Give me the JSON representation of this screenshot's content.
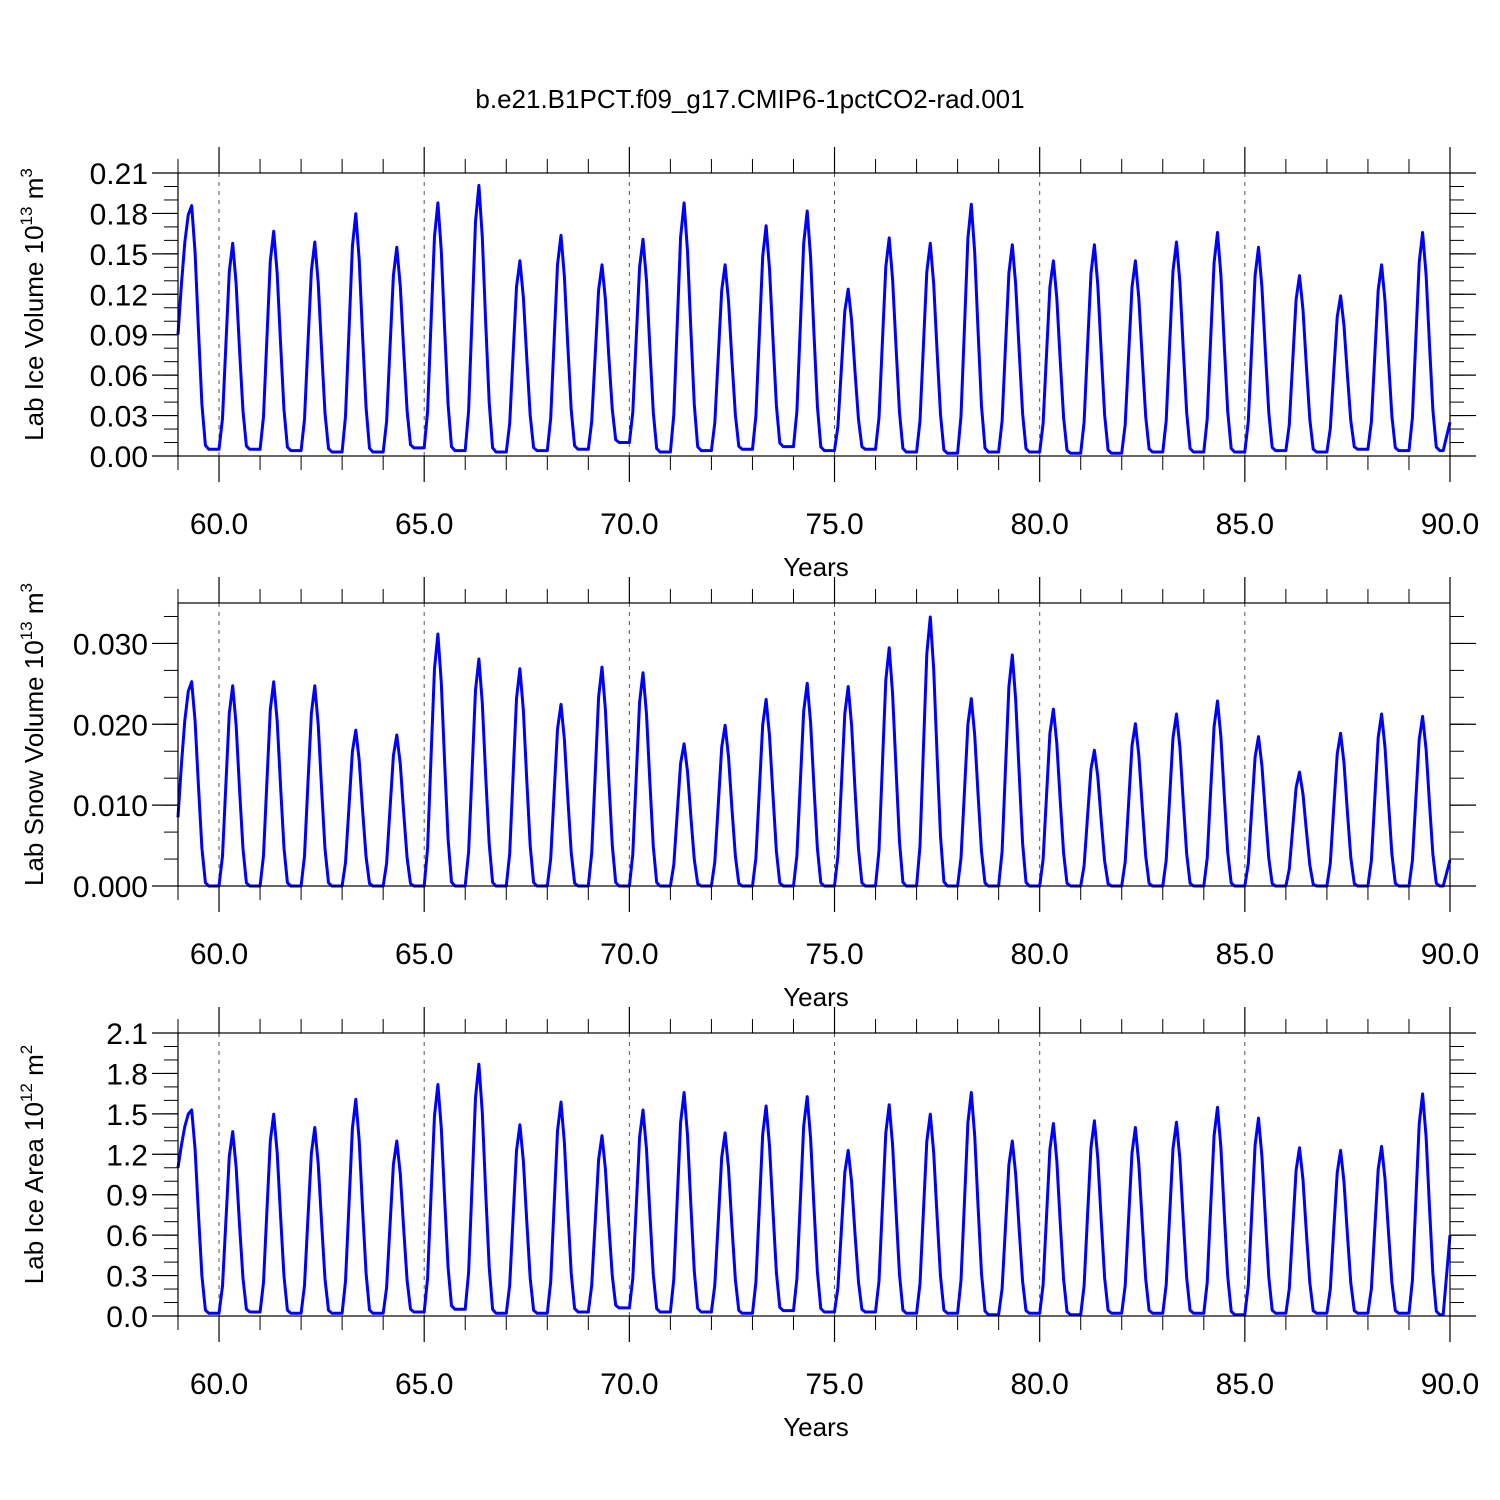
{
  "figure": {
    "title": "b.e21.B1PCT.f09_g17.CMIP6-1pctCO2-rad.001"
  },
  "style": {
    "line_color": "#0000ff",
    "axis_color": "#000000",
    "grid_color": "#555555"
  },
  "chart_data": [
    {
      "type": "line",
      "ylabel": "Lab Ice Volume 10",
      "ylabel_exp": "13",
      "ylabel_unit": " m",
      "ylabel_unit_exp": "3",
      "xlabel": "Years",
      "xlim": [
        59.0,
        90.0
      ],
      "ylim": [
        0.0,
        0.21
      ],
      "x_ticks": [
        60.0,
        65.0,
        70.0,
        75.0,
        80.0,
        85.0,
        90.0
      ],
      "x_tick_labels": [
        "60.0",
        "65.0",
        "70.0",
        "75.0",
        "80.0",
        "85.0",
        "90.0"
      ],
      "y_ticks": [
        0.0,
        0.03,
        0.06,
        0.09,
        0.12,
        0.15,
        0.18,
        0.21
      ],
      "y_tick_labels": [
        "0.00",
        "0.03",
        "0.06",
        "0.09",
        "0.12",
        "0.15",
        "0.18",
        "0.21"
      ],
      "grid": "dashed vertical at major x ticks",
      "peaks": [
        0.186,
        0.158,
        0.167,
        0.159,
        0.18,
        0.155,
        0.188,
        0.201,
        0.145,
        0.164,
        0.142,
        0.161,
        0.188,
        0.142,
        0.171,
        0.182,
        0.124,
        0.162,
        0.158,
        0.187,
        0.157,
        0.145,
        0.157,
        0.145,
        0.159,
        0.166,
        0.155,
        0.134,
        0.119,
        0.142,
        0.166
      ],
      "troughs": [
        0.005,
        0.005,
        0.004,
        0.003,
        0.003,
        0.006,
        0.004,
        0.003,
        0.004,
        0.005,
        0.01,
        0.003,
        0.004,
        0.005,
        0.007,
        0.004,
        0.005,
        0.003,
        0.002,
        0.003,
        0.003,
        0.002,
        0.002,
        0.003,
        0.003,
        0.003,
        0.004,
        0.003,
        0.005,
        0.004,
        0.004
      ],
      "start_value": 0.09,
      "end_value": 0.025
    },
    {
      "type": "line",
      "ylabel": "Lab Snow Volume 10",
      "ylabel_exp": "13",
      "ylabel_unit": " m",
      "ylabel_unit_exp": "3",
      "xlabel": "Years",
      "xlim": [
        59.0,
        90.0
      ],
      "ylim": [
        0.0,
        0.035
      ],
      "x_ticks": [
        60.0,
        65.0,
        70.0,
        75.0,
        80.0,
        85.0,
        90.0
      ],
      "x_tick_labels": [
        "60.0",
        "65.0",
        "70.0",
        "75.0",
        "80.0",
        "85.0",
        "90.0"
      ],
      "y_ticks": [
        0.0,
        0.01,
        0.02,
        0.03
      ],
      "y_tick_labels": [
        "0.000",
        "0.010",
        "0.020",
        "0.030"
      ],
      "grid": "dashed vertical at major x ticks",
      "peaks": [
        0.0253,
        0.0248,
        0.0253,
        0.0248,
        0.0193,
        0.0187,
        0.0312,
        0.0281,
        0.0269,
        0.0225,
        0.0271,
        0.0264,
        0.0176,
        0.0199,
        0.0231,
        0.0251,
        0.0247,
        0.0295,
        0.0333,
        0.0232,
        0.0286,
        0.0219,
        0.0168,
        0.0201,
        0.0213,
        0.0229,
        0.0185,
        0.0141,
        0.0189,
        0.0213,
        0.021
      ],
      "troughs": [
        0.0,
        0.0,
        0.0,
        0.0,
        0.0,
        0.0,
        0.0,
        0.0,
        0.0,
        0.0,
        0.0,
        0.0,
        0.0,
        0.0,
        0.0,
        0.0,
        0.0,
        0.0,
        0.0,
        0.0,
        0.0,
        0.0,
        0.0,
        0.0,
        0.0,
        0.0,
        0.0,
        0.0,
        0.0,
        0.0,
        0.0
      ],
      "start_value": 0.0085,
      "end_value": 0.0032
    },
    {
      "type": "line",
      "ylabel": "Lab Ice Area 10",
      "ylabel_exp": "12",
      "ylabel_unit": " m",
      "ylabel_unit_exp": "2",
      "xlabel": "Years",
      "xlim": [
        59.0,
        90.0
      ],
      "ylim": [
        0.0,
        2.1
      ],
      "x_ticks": [
        60.0,
        65.0,
        70.0,
        75.0,
        80.0,
        85.0,
        90.0
      ],
      "x_tick_labels": [
        "60.0",
        "65.0",
        "70.0",
        "75.0",
        "80.0",
        "85.0",
        "90.0"
      ],
      "y_ticks": [
        0.0,
        0.3,
        0.6,
        0.9,
        1.2,
        1.5,
        1.8,
        2.1
      ],
      "y_tick_labels": [
        "0.0",
        "0.3",
        "0.6",
        "0.9",
        "1.2",
        "1.5",
        "1.8",
        "2.1"
      ],
      "grid": "dashed vertical at major x ticks",
      "peaks": [
        1.53,
        1.37,
        1.5,
        1.4,
        1.61,
        1.3,
        1.72,
        1.87,
        1.42,
        1.59,
        1.34,
        1.53,
        1.66,
        1.36,
        1.56,
        1.63,
        1.23,
        1.57,
        1.5,
        1.66,
        1.3,
        1.43,
        1.45,
        1.4,
        1.44,
        1.55,
        1.47,
        1.25,
        1.23,
        1.26,
        1.65
      ],
      "troughs": [
        0.02,
        0.03,
        0.02,
        0.02,
        0.02,
        0.03,
        0.05,
        0.02,
        0.02,
        0.03,
        0.06,
        0.03,
        0.03,
        0.02,
        0.04,
        0.03,
        0.03,
        0.02,
        0.02,
        0.01,
        0.02,
        0.01,
        0.02,
        0.02,
        0.02,
        0.01,
        0.02,
        0.02,
        0.02,
        0.02,
        0.01
      ],
      "start_value": 1.1,
      "end_value": 0.6
    }
  ]
}
